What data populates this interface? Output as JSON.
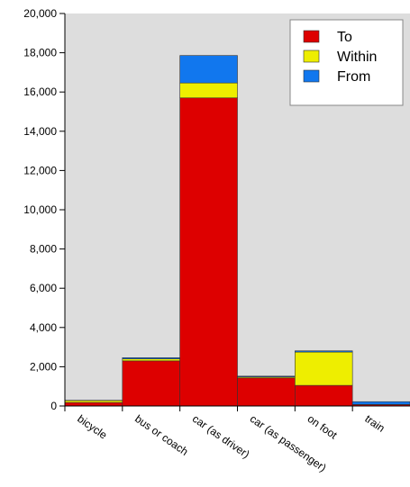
{
  "chart_data": {
    "type": "bar",
    "stacked": true,
    "categories": [
      "bicycle",
      "bus or coach",
      "car (as driver)",
      "car (as passenger)",
      "on foot",
      "train"
    ],
    "series": [
      {
        "name": "To",
        "color": "#dd0000",
        "values": [
          180,
          2300,
          15700,
          1430,
          1050,
          70
        ]
      },
      {
        "name": "Within",
        "color": "#eeee00",
        "values": [
          100,
          100,
          760,
          50,
          1700,
          10
        ]
      },
      {
        "name": "From",
        "color": "#1177ee",
        "values": [
          10,
          60,
          1400,
          40,
          60,
          140
        ]
      }
    ],
    "y_ticks": [
      "0",
      "2,000",
      "4,000",
      "6,000",
      "8,000",
      "10,000",
      "12,000",
      "14,000",
      "16,000",
      "18,000",
      "20,000"
    ],
    "ylim": [
      0,
      20000
    ],
    "grid": false,
    "legend_position": "top-right",
    "plot_background": "#dddddd"
  }
}
